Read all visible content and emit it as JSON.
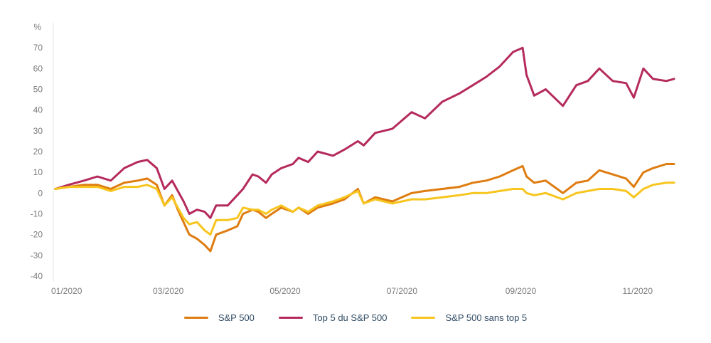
{
  "chart_data": {
    "type": "line",
    "ylabel": "%",
    "ylim": [
      -40,
      80
    ],
    "yticks": [
      -40,
      -30,
      -20,
      -10,
      0,
      10,
      20,
      30,
      40,
      50,
      60,
      70
    ],
    "xlim": [
      "2020-01-01",
      "2020-11-20"
    ],
    "xticks": [
      {
        "date": "2020-01-01",
        "label": "01/2020"
      },
      {
        "date": "2020-03-01",
        "label": "03/2020"
      },
      {
        "date": "2020-05-01",
        "label": "05/2020"
      },
      {
        "date": "2020-07-01",
        "label": "07/2020"
      },
      {
        "date": "2020-09-01",
        "label": "09/2020"
      },
      {
        "date": "2020-11-01",
        "label": "11/2020"
      }
    ],
    "grid": false,
    "legend_position": "bottom-center",
    "series": [
      {
        "name": "S&P 500",
        "color": "#de7c10",
        "points": [
          [
            "2020-01-02",
            2
          ],
          [
            "2020-01-09",
            3
          ],
          [
            "2020-01-17",
            4
          ],
          [
            "2020-01-24",
            4
          ],
          [
            "2020-01-31",
            2
          ],
          [
            "2020-02-07",
            5
          ],
          [
            "2020-02-14",
            6
          ],
          [
            "2020-02-19",
            7
          ],
          [
            "2020-02-24",
            4
          ],
          [
            "2020-02-28",
            -6
          ],
          [
            "2020-03-03",
            -1
          ],
          [
            "2020-03-06",
            -8
          ],
          [
            "2020-03-09",
            -14
          ],
          [
            "2020-03-12",
            -20
          ],
          [
            "2020-03-16",
            -22
          ],
          [
            "2020-03-20",
            -25
          ],
          [
            "2020-03-23",
            -28
          ],
          [
            "2020-03-26",
            -20
          ],
          [
            "2020-04-01",
            -18
          ],
          [
            "2020-04-06",
            -16
          ],
          [
            "2020-04-09",
            -10
          ],
          [
            "2020-04-14",
            -8
          ],
          [
            "2020-04-17",
            -9
          ],
          [
            "2020-04-21",
            -12
          ],
          [
            "2020-04-24",
            -10
          ],
          [
            "2020-04-29",
            -7
          ],
          [
            "2020-05-05",
            -9
          ],
          [
            "2020-05-08",
            -7
          ],
          [
            "2020-05-13",
            -10
          ],
          [
            "2020-05-18",
            -7
          ],
          [
            "2020-05-26",
            -5
          ],
          [
            "2020-06-01",
            -3
          ],
          [
            "2020-06-08",
            2
          ],
          [
            "2020-06-11",
            -5
          ],
          [
            "2020-06-17",
            -2
          ],
          [
            "2020-06-26",
            -4
          ],
          [
            "2020-07-06",
            0
          ],
          [
            "2020-07-13",
            1
          ],
          [
            "2020-07-22",
            2
          ],
          [
            "2020-07-31",
            3
          ],
          [
            "2020-08-07",
            5
          ],
          [
            "2020-08-14",
            6
          ],
          [
            "2020-08-21",
            8
          ],
          [
            "2020-08-28",
            11
          ],
          [
            "2020-09-02",
            13
          ],
          [
            "2020-09-04",
            8
          ],
          [
            "2020-09-08",
            5
          ],
          [
            "2020-09-14",
            6
          ],
          [
            "2020-09-23",
            0
          ],
          [
            "2020-09-30",
            5
          ],
          [
            "2020-10-06",
            6
          ],
          [
            "2020-10-12",
            11
          ],
          [
            "2020-10-19",
            9
          ],
          [
            "2020-10-26",
            7
          ],
          [
            "2020-10-30",
            3
          ],
          [
            "2020-11-04",
            10
          ],
          [
            "2020-11-09",
            12
          ],
          [
            "2020-11-16",
            14
          ],
          [
            "2020-11-20",
            14
          ]
        ]
      },
      {
        "name": "Top 5 du S&P 500",
        "color": "#b52a5c",
        "points": [
          [
            "2020-01-02",
            2
          ],
          [
            "2020-01-09",
            4
          ],
          [
            "2020-01-17",
            6
          ],
          [
            "2020-01-24",
            8
          ],
          [
            "2020-01-31",
            6
          ],
          [
            "2020-02-07",
            12
          ],
          [
            "2020-02-14",
            15
          ],
          [
            "2020-02-19",
            16
          ],
          [
            "2020-02-24",
            12
          ],
          [
            "2020-02-28",
            2
          ],
          [
            "2020-03-03",
            6
          ],
          [
            "2020-03-06",
            1
          ],
          [
            "2020-03-09",
            -4
          ],
          [
            "2020-03-12",
            -10
          ],
          [
            "2020-03-16",
            -8
          ],
          [
            "2020-03-20",
            -9
          ],
          [
            "2020-03-23",
            -12
          ],
          [
            "2020-03-26",
            -6
          ],
          [
            "2020-04-01",
            -6
          ],
          [
            "2020-04-06",
            -1
          ],
          [
            "2020-04-09",
            2
          ],
          [
            "2020-04-14",
            9
          ],
          [
            "2020-04-17",
            8
          ],
          [
            "2020-04-21",
            5
          ],
          [
            "2020-04-24",
            9
          ],
          [
            "2020-04-29",
            12
          ],
          [
            "2020-05-05",
            14
          ],
          [
            "2020-05-08",
            17
          ],
          [
            "2020-05-13",
            15
          ],
          [
            "2020-05-18",
            20
          ],
          [
            "2020-05-26",
            18
          ],
          [
            "2020-06-01",
            21
          ],
          [
            "2020-06-08",
            25
          ],
          [
            "2020-06-11",
            23
          ],
          [
            "2020-06-17",
            29
          ],
          [
            "2020-06-26",
            31
          ],
          [
            "2020-07-06",
            39
          ],
          [
            "2020-07-13",
            36
          ],
          [
            "2020-07-22",
            44
          ],
          [
            "2020-07-31",
            48
          ],
          [
            "2020-08-07",
            52
          ],
          [
            "2020-08-14",
            56
          ],
          [
            "2020-08-21",
            61
          ],
          [
            "2020-08-28",
            68
          ],
          [
            "2020-09-02",
            70
          ],
          [
            "2020-09-04",
            57
          ],
          [
            "2020-09-08",
            47
          ],
          [
            "2020-09-14",
            50
          ],
          [
            "2020-09-23",
            42
          ],
          [
            "2020-09-30",
            52
          ],
          [
            "2020-10-06",
            54
          ],
          [
            "2020-10-12",
            60
          ],
          [
            "2020-10-19",
            54
          ],
          [
            "2020-10-26",
            53
          ],
          [
            "2020-10-30",
            46
          ],
          [
            "2020-11-04",
            60
          ],
          [
            "2020-11-09",
            55
          ],
          [
            "2020-11-16",
            54
          ],
          [
            "2020-11-20",
            55
          ]
        ]
      },
      {
        "name": "S&P 500 sans top 5",
        "color": "#f7c51e",
        "points": [
          [
            "2020-01-02",
            2
          ],
          [
            "2020-01-09",
            3
          ],
          [
            "2020-01-17",
            3
          ],
          [
            "2020-01-24",
            3
          ],
          [
            "2020-01-31",
            1
          ],
          [
            "2020-02-07",
            3
          ],
          [
            "2020-02-14",
            3
          ],
          [
            "2020-02-19",
            4
          ],
          [
            "2020-02-24",
            2
          ],
          [
            "2020-02-28",
            -6
          ],
          [
            "2020-03-03",
            -2
          ],
          [
            "2020-03-06",
            -7
          ],
          [
            "2020-03-09",
            -12
          ],
          [
            "2020-03-12",
            -15
          ],
          [
            "2020-03-16",
            -14
          ],
          [
            "2020-03-20",
            -18
          ],
          [
            "2020-03-23",
            -20
          ],
          [
            "2020-03-26",
            -13
          ],
          [
            "2020-04-01",
            -13
          ],
          [
            "2020-04-06",
            -12
          ],
          [
            "2020-04-09",
            -7
          ],
          [
            "2020-04-14",
            -8
          ],
          [
            "2020-04-17",
            -8
          ],
          [
            "2020-04-21",
            -10
          ],
          [
            "2020-04-24",
            -8
          ],
          [
            "2020-04-29",
            -6
          ],
          [
            "2020-05-05",
            -9
          ],
          [
            "2020-05-08",
            -7
          ],
          [
            "2020-05-13",
            -9
          ],
          [
            "2020-05-18",
            -6
          ],
          [
            "2020-05-26",
            -4
          ],
          [
            "2020-06-01",
            -2
          ],
          [
            "2020-06-08",
            1
          ],
          [
            "2020-06-11",
            -5
          ],
          [
            "2020-06-17",
            -3
          ],
          [
            "2020-06-26",
            -5
          ],
          [
            "2020-07-06",
            -3
          ],
          [
            "2020-07-13",
            -3
          ],
          [
            "2020-07-22",
            -2
          ],
          [
            "2020-07-31",
            -1
          ],
          [
            "2020-08-07",
            0
          ],
          [
            "2020-08-14",
            0
          ],
          [
            "2020-08-21",
            1
          ],
          [
            "2020-08-28",
            2
          ],
          [
            "2020-09-02",
            2
          ],
          [
            "2020-09-04",
            0
          ],
          [
            "2020-09-08",
            -1
          ],
          [
            "2020-09-14",
            0
          ],
          [
            "2020-09-23",
            -3
          ],
          [
            "2020-09-30",
            0
          ],
          [
            "2020-10-06",
            1
          ],
          [
            "2020-10-12",
            2
          ],
          [
            "2020-10-19",
            2
          ],
          [
            "2020-10-26",
            1
          ],
          [
            "2020-10-30",
            -2
          ],
          [
            "2020-11-04",
            2
          ],
          [
            "2020-11-09",
            4
          ],
          [
            "2020-11-16",
            5
          ],
          [
            "2020-11-20",
            5
          ]
        ]
      }
    ]
  }
}
